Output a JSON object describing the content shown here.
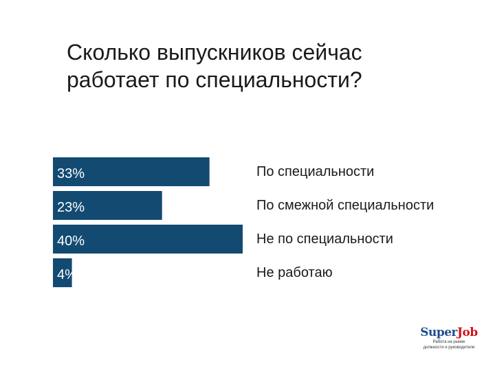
{
  "title": {
    "line1": "Сколько выпускников сейчас",
    "line2": "работает по специальности?"
  },
  "chart_data": {
    "type": "bar",
    "orientation": "horizontal",
    "categories": [
      "По специальности",
      "По смежной специальности",
      "Не по специальности",
      "Не работаю"
    ],
    "values": [
      33,
      23,
      40,
      4
    ],
    "data_labels": [
      "33%",
      "23%",
      "40%",
      "4%"
    ],
    "unit": "%",
    "xlim": [
      0,
      40
    ],
    "grid": false,
    "legend": "none",
    "bar_color": "#134a72",
    "label_color": "#ffffff",
    "category_color": "#1a1a1a"
  },
  "logo": {
    "super": "Super",
    "job": "Job",
    "tagline_1": "Работа на рынке",
    "tagline_2": "должности и руководители"
  }
}
